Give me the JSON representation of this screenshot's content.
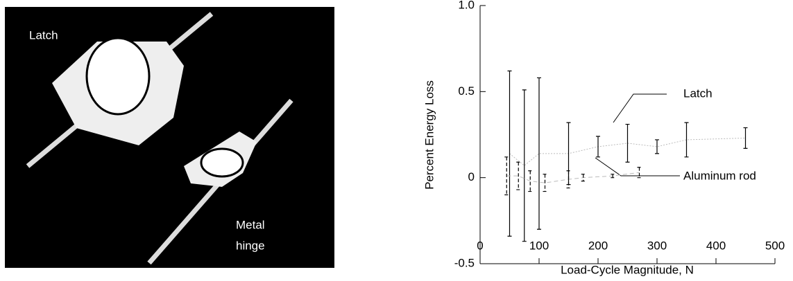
{
  "photo": {
    "labels": [
      "Latch",
      "Metal",
      "hinge"
    ]
  },
  "chart_data": {
    "type": "errorbar",
    "xlabel": "Load-Cycle Magnitude, N",
    "ylabel": "Percent Energy Loss",
    "xlim": [
      0,
      500
    ],
    "xticks": [
      0,
      100,
      200,
      300,
      400,
      500
    ],
    "ylim": [
      -0.5,
      1
    ],
    "yticks": [
      {
        "value": 1,
        "label": "1.0"
      },
      0.5,
      0,
      -0.5
    ],
    "series": [
      {
        "name": "Latch",
        "color": "#000000",
        "x": [
          50,
          75,
          100,
          150,
          200,
          250,
          300,
          350,
          450
        ],
        "values": [
          0.14,
          0.07,
          0.14,
          0.14,
          0.18,
          0.2,
          0.18,
          0.22,
          0.23
        ],
        "errors": [
          0.48,
          0.44,
          0.44,
          0.18,
          0.06,
          0.11,
          0.04,
          0.1,
          0.06
        ]
      },
      {
        "name": "Aluminum rod",
        "color": "#000000",
        "x": [
          45,
          65,
          85,
          110,
          150,
          175,
          225,
          270
        ],
        "values": [
          0.01,
          0.01,
          -0.02,
          -0.03,
          -0.01,
          0.0,
          0.01,
          0.03
        ],
        "errors": [
          0.11,
          0.08,
          0.06,
          0.05,
          0.05,
          0.02,
          0.01,
          0.03
        ]
      }
    ]
  }
}
